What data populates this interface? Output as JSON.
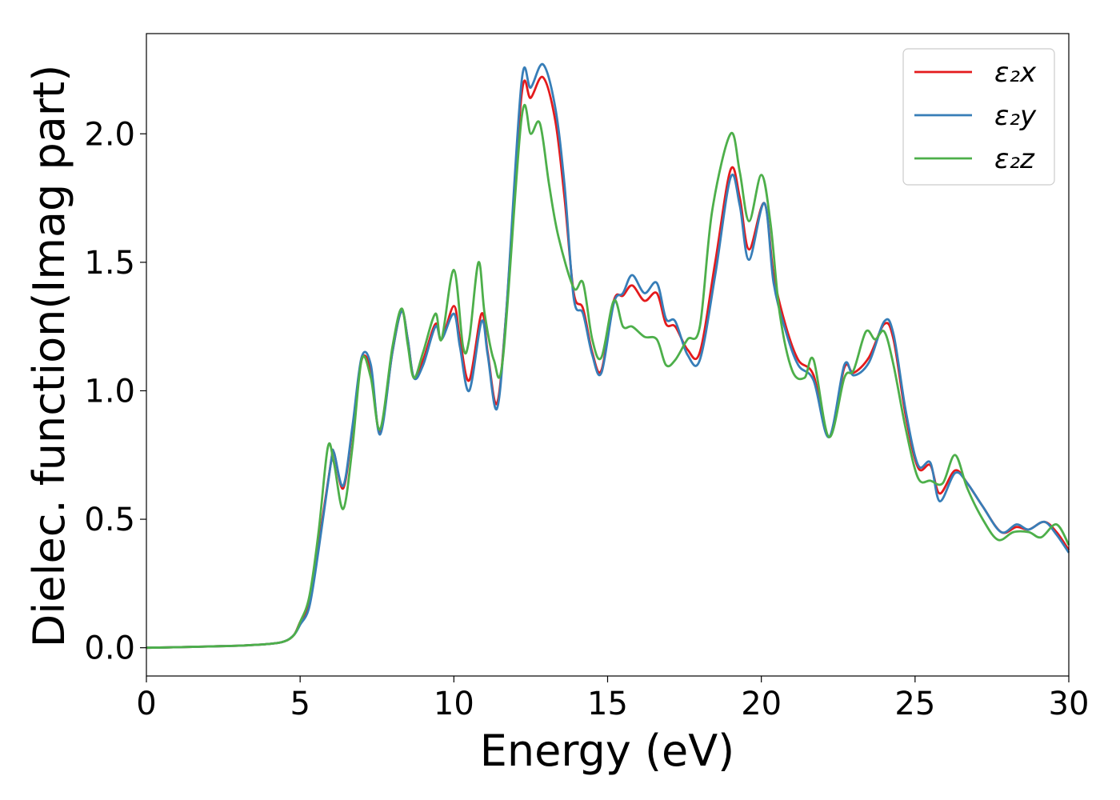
{
  "chart_data": {
    "type": "line",
    "title": "",
    "xlabel": "Energy (eV)",
    "ylabel": "Dielec. function(Imag part)",
    "xlim": [
      0,
      30
    ],
    "ylim": [
      -0.11,
      2.39
    ],
    "xticks": [
      0,
      5,
      10,
      15,
      20,
      25,
      30
    ],
    "xtick_labels": [
      "0",
      "5",
      "10",
      "15",
      "20",
      "25",
      "30"
    ],
    "yticks": [
      0.0,
      0.5,
      1.0,
      1.5,
      2.0
    ],
    "ytick_labels": [
      "0.0",
      "0.5",
      "1.0",
      "1.5",
      "2.0"
    ],
    "grid": false,
    "legend_position": "top-right",
    "series": [
      {
        "name": "ε₂x",
        "color": "#e41a1c",
        "points": [
          [
            0,
            0
          ],
          [
            1,
            0.002
          ],
          [
            2,
            0.005
          ],
          [
            3,
            0.008
          ],
          [
            4,
            0.015
          ],
          [
            4.5,
            0.025
          ],
          [
            4.8,
            0.05
          ],
          [
            5.0,
            0.1
          ],
          [
            5.3,
            0.17
          ],
          [
            5.6,
            0.4
          ],
          [
            6.0,
            0.72
          ],
          [
            6.1,
            0.76
          ],
          [
            6.4,
            0.62
          ],
          [
            6.7,
            0.85
          ],
          [
            7.0,
            1.12
          ],
          [
            7.3,
            1.08
          ],
          [
            7.6,
            0.84
          ],
          [
            8.0,
            1.15
          ],
          [
            8.3,
            1.31
          ],
          [
            8.5,
            1.2
          ],
          [
            8.7,
            1.05
          ],
          [
            9.0,
            1.12
          ],
          [
            9.4,
            1.26
          ],
          [
            9.6,
            1.2
          ],
          [
            10.0,
            1.33
          ],
          [
            10.2,
            1.2
          ],
          [
            10.5,
            1.04
          ],
          [
            10.9,
            1.3
          ],
          [
            11.1,
            1.15
          ],
          [
            11.4,
            0.95
          ],
          [
            11.7,
            1.3
          ],
          [
            12.2,
            2.15
          ],
          [
            12.5,
            2.14
          ],
          [
            12.9,
            2.22
          ],
          [
            13.3,
            2.05
          ],
          [
            13.6,
            1.75
          ],
          [
            13.9,
            1.38
          ],
          [
            14.2,
            1.32
          ],
          [
            14.5,
            1.15
          ],
          [
            14.8,
            1.08
          ],
          [
            15.2,
            1.35
          ],
          [
            15.5,
            1.37
          ],
          [
            15.8,
            1.41
          ],
          [
            16.2,
            1.35
          ],
          [
            16.6,
            1.38
          ],
          [
            16.9,
            1.26
          ],
          [
            17.2,
            1.25
          ],
          [
            17.6,
            1.16
          ],
          [
            18.0,
            1.15
          ],
          [
            18.5,
            1.5
          ],
          [
            19.0,
            1.86
          ],
          [
            19.3,
            1.75
          ],
          [
            19.6,
            1.55
          ],
          [
            20.1,
            1.73
          ],
          [
            20.4,
            1.45
          ],
          [
            20.8,
            1.25
          ],
          [
            21.2,
            1.12
          ],
          [
            21.7,
            1.06
          ],
          [
            22.2,
            0.82
          ],
          [
            22.7,
            1.09
          ],
          [
            23.0,
            1.07
          ],
          [
            23.5,
            1.13
          ],
          [
            24.0,
            1.26
          ],
          [
            24.3,
            1.2
          ],
          [
            24.7,
            0.9
          ],
          [
            25.1,
            0.7
          ],
          [
            25.5,
            0.71
          ],
          [
            25.8,
            0.6
          ],
          [
            26.3,
            0.69
          ],
          [
            26.7,
            0.64
          ],
          [
            27.2,
            0.55
          ],
          [
            27.8,
            0.45
          ],
          [
            28.3,
            0.47
          ],
          [
            28.7,
            0.46
          ],
          [
            29.2,
            0.49
          ],
          [
            29.6,
            0.45
          ],
          [
            30.0,
            0.38
          ]
        ]
      },
      {
        "name": "ε₂y",
        "color": "#377eb8",
        "points": [
          [
            0,
            0
          ],
          [
            1,
            0.002
          ],
          [
            2,
            0.005
          ],
          [
            3,
            0.008
          ],
          [
            4,
            0.015
          ],
          [
            4.5,
            0.025
          ],
          [
            4.8,
            0.05
          ],
          [
            5.0,
            0.09
          ],
          [
            5.3,
            0.16
          ],
          [
            5.6,
            0.38
          ],
          [
            6.0,
            0.72
          ],
          [
            6.1,
            0.76
          ],
          [
            6.4,
            0.63
          ],
          [
            6.7,
            0.86
          ],
          [
            7.0,
            1.13
          ],
          [
            7.3,
            1.1
          ],
          [
            7.6,
            0.83
          ],
          [
            8.0,
            1.15
          ],
          [
            8.3,
            1.31
          ],
          [
            8.5,
            1.2
          ],
          [
            8.7,
            1.05
          ],
          [
            9.0,
            1.1
          ],
          [
            9.4,
            1.25
          ],
          [
            9.6,
            1.2
          ],
          [
            10.0,
            1.3
          ],
          [
            10.2,
            1.17
          ],
          [
            10.5,
            1.0
          ],
          [
            10.9,
            1.27
          ],
          [
            11.1,
            1.14
          ],
          [
            11.4,
            0.93
          ],
          [
            11.7,
            1.3
          ],
          [
            12.2,
            2.2
          ],
          [
            12.5,
            2.18
          ],
          [
            12.9,
            2.27
          ],
          [
            13.3,
            2.1
          ],
          [
            13.6,
            1.8
          ],
          [
            13.9,
            1.36
          ],
          [
            14.2,
            1.3
          ],
          [
            14.5,
            1.14
          ],
          [
            14.8,
            1.07
          ],
          [
            15.2,
            1.34
          ],
          [
            15.5,
            1.38
          ],
          [
            15.8,
            1.45
          ],
          [
            16.2,
            1.38
          ],
          [
            16.6,
            1.42
          ],
          [
            16.9,
            1.28
          ],
          [
            17.2,
            1.27
          ],
          [
            17.6,
            1.14
          ],
          [
            18.0,
            1.12
          ],
          [
            18.5,
            1.45
          ],
          [
            19.0,
            1.83
          ],
          [
            19.3,
            1.72
          ],
          [
            19.6,
            1.51
          ],
          [
            20.1,
            1.73
          ],
          [
            20.4,
            1.42
          ],
          [
            20.8,
            1.23
          ],
          [
            21.2,
            1.1
          ],
          [
            21.7,
            1.04
          ],
          [
            22.2,
            0.82
          ],
          [
            22.7,
            1.1
          ],
          [
            23.0,
            1.06
          ],
          [
            23.5,
            1.11
          ],
          [
            24.0,
            1.27
          ],
          [
            24.3,
            1.22
          ],
          [
            24.7,
            0.92
          ],
          [
            25.1,
            0.71
          ],
          [
            25.5,
            0.72
          ],
          [
            25.8,
            0.57
          ],
          [
            26.3,
            0.68
          ],
          [
            26.7,
            0.64
          ],
          [
            27.2,
            0.55
          ],
          [
            27.8,
            0.45
          ],
          [
            28.3,
            0.48
          ],
          [
            28.7,
            0.46
          ],
          [
            29.2,
            0.49
          ],
          [
            29.6,
            0.44
          ],
          [
            30.0,
            0.37
          ]
        ]
      },
      {
        "name": "ε₂z",
        "color": "#4daf4a",
        "points": [
          [
            0,
            0
          ],
          [
            1,
            0.002
          ],
          [
            2,
            0.005
          ],
          [
            3,
            0.008
          ],
          [
            4,
            0.015
          ],
          [
            4.5,
            0.025
          ],
          [
            4.8,
            0.05
          ],
          [
            5.0,
            0.1
          ],
          [
            5.3,
            0.2
          ],
          [
            5.6,
            0.45
          ],
          [
            5.9,
            0.78
          ],
          [
            6.1,
            0.72
          ],
          [
            6.4,
            0.54
          ],
          [
            6.7,
            0.78
          ],
          [
            7.0,
            1.12
          ],
          [
            7.3,
            1.05
          ],
          [
            7.6,
            0.85
          ],
          [
            8.0,
            1.17
          ],
          [
            8.3,
            1.32
          ],
          [
            8.5,
            1.18
          ],
          [
            8.7,
            1.05
          ],
          [
            9.0,
            1.15
          ],
          [
            9.4,
            1.3
          ],
          [
            9.6,
            1.2
          ],
          [
            10.0,
            1.47
          ],
          [
            10.3,
            1.17
          ],
          [
            10.5,
            1.2
          ],
          [
            10.8,
            1.5
          ],
          [
            11.0,
            1.3
          ],
          [
            11.3,
            1.12
          ],
          [
            11.6,
            1.13
          ],
          [
            12.2,
            2.06
          ],
          [
            12.5,
            2.0
          ],
          [
            12.8,
            2.04
          ],
          [
            13.1,
            1.8
          ],
          [
            13.4,
            1.6
          ],
          [
            13.9,
            1.4
          ],
          [
            14.2,
            1.42
          ],
          [
            14.5,
            1.2
          ],
          [
            14.8,
            1.13
          ],
          [
            15.2,
            1.35
          ],
          [
            15.5,
            1.25
          ],
          [
            15.8,
            1.25
          ],
          [
            16.2,
            1.21
          ],
          [
            16.6,
            1.2
          ],
          [
            16.9,
            1.1
          ],
          [
            17.2,
            1.12
          ],
          [
            17.6,
            1.2
          ],
          [
            18.0,
            1.25
          ],
          [
            18.4,
            1.7
          ],
          [
            19.0,
            2.0
          ],
          [
            19.3,
            1.85
          ],
          [
            19.6,
            1.66
          ],
          [
            20.0,
            1.84
          ],
          [
            20.3,
            1.65
          ],
          [
            20.6,
            1.3
          ],
          [
            21.0,
            1.08
          ],
          [
            21.4,
            1.05
          ],
          [
            21.7,
            1.12
          ],
          [
            22.2,
            0.82
          ],
          [
            22.7,
            1.05
          ],
          [
            23.0,
            1.08
          ],
          [
            23.4,
            1.23
          ],
          [
            23.7,
            1.2
          ],
          [
            24.0,
            1.23
          ],
          [
            24.3,
            1.1
          ],
          [
            24.7,
            0.85
          ],
          [
            25.1,
            0.66
          ],
          [
            25.5,
            0.65
          ],
          [
            25.9,
            0.64
          ],
          [
            26.3,
            0.75
          ],
          [
            26.7,
            0.62
          ],
          [
            27.2,
            0.5
          ],
          [
            27.7,
            0.42
          ],
          [
            28.2,
            0.45
          ],
          [
            28.7,
            0.45
          ],
          [
            29.1,
            0.43
          ],
          [
            29.6,
            0.48
          ],
          [
            30.0,
            0.4
          ]
        ]
      }
    ]
  }
}
